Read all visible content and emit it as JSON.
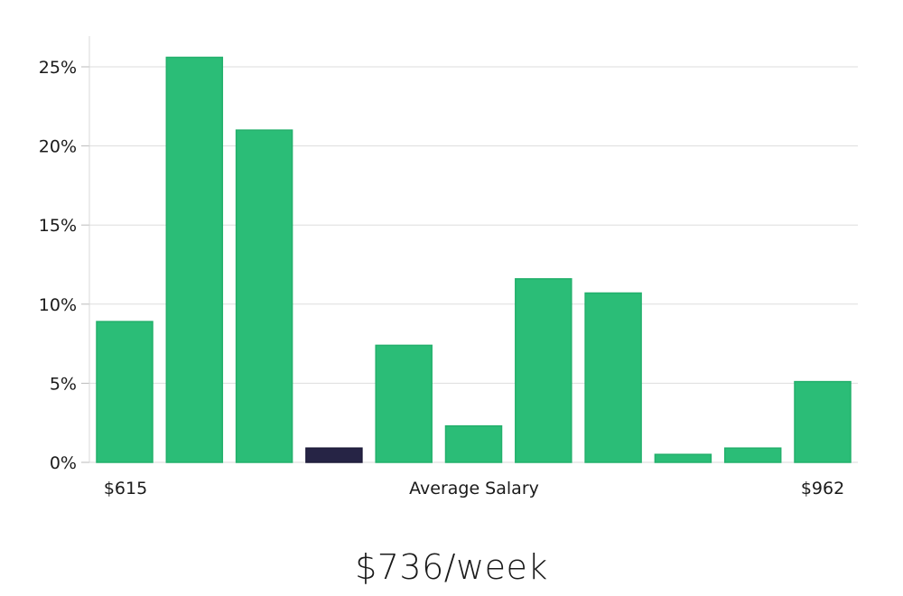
{
  "chart_data": {
    "type": "bar",
    "values": [
      8.9,
      25.6,
      21.0,
      0.9,
      7.4,
      2.3,
      11.6,
      10.7,
      0.5,
      0.9,
      5.1
    ],
    "highlight_index": 3,
    "ylim": [
      0,
      27
    ],
    "yticks": [
      0,
      5,
      10,
      15,
      20,
      25
    ],
    "ytick_labels": [
      "0%",
      "5%",
      "10%",
      "15%",
      "20%",
      "25%"
    ],
    "xlabel": "Average Salary",
    "x_min_label": "$615",
    "x_max_label": "$962",
    "grid": true,
    "colors": {
      "bar": "#2bbd77",
      "bar_stroke": "#23b06c",
      "highlight": "#262445",
      "grid": "#dddddd",
      "axis": "#d8d8d8"
    }
  },
  "headline": {
    "text": "$736/week"
  }
}
